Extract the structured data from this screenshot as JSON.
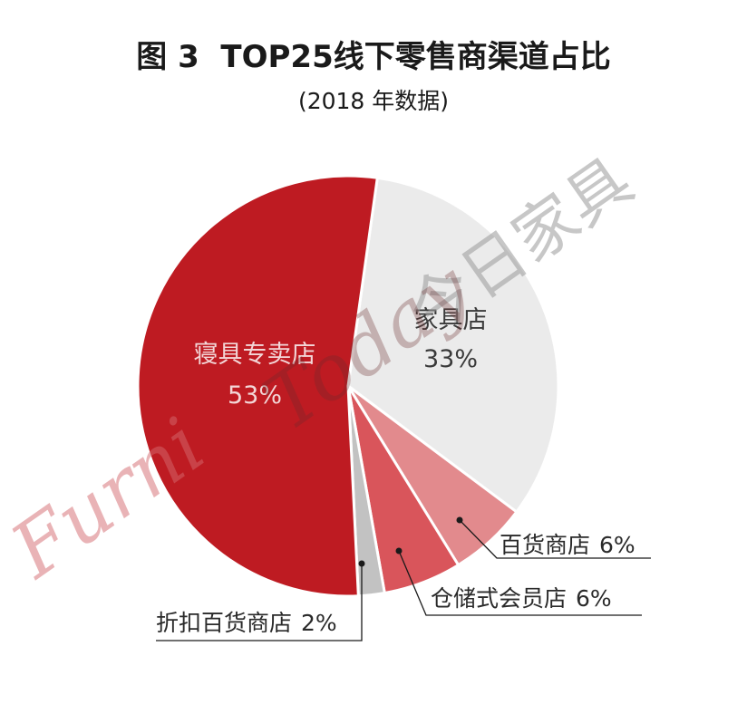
{
  "chart_data": {
    "type": "pie",
    "title": "图 3  TOP25线下零售商渠道占比",
    "subtitle": "(2018 年数据)",
    "slices": [
      {
        "label": "家具店",
        "value": 33,
        "percent_label": "33%",
        "color": "#ebebeb",
        "label_style": "inside",
        "text_color": "#3a3a3a"
      },
      {
        "label": "百货商店",
        "value": 6,
        "percent_label": "6%",
        "color": "#e28a8d",
        "label_style": "callout"
      },
      {
        "label": "仓储式会员店",
        "value": 6,
        "percent_label": "6%",
        "color": "#d9555b",
        "label_style": "callout"
      },
      {
        "label": "折扣百货商店",
        "value": 2,
        "percent_label": "2%",
        "color": "#c2c2c2",
        "label_style": "callout"
      },
      {
        "label": "寝具专卖店",
        "value": 53,
        "percent_label": "53%",
        "color": "#be1b22",
        "label_style": "inside",
        "text_color": "#f3d6d7"
      }
    ],
    "start_angle_deg": 8,
    "direction": "clockwise",
    "legend": "none"
  },
  "watermark": {
    "chinese": "今日家具",
    "english": "Furniture Today",
    "english_visible_parts": [
      "Furni",
      "Today"
    ],
    "english_color": "#d46a6f",
    "chinese_color": "#8f8f8f"
  }
}
